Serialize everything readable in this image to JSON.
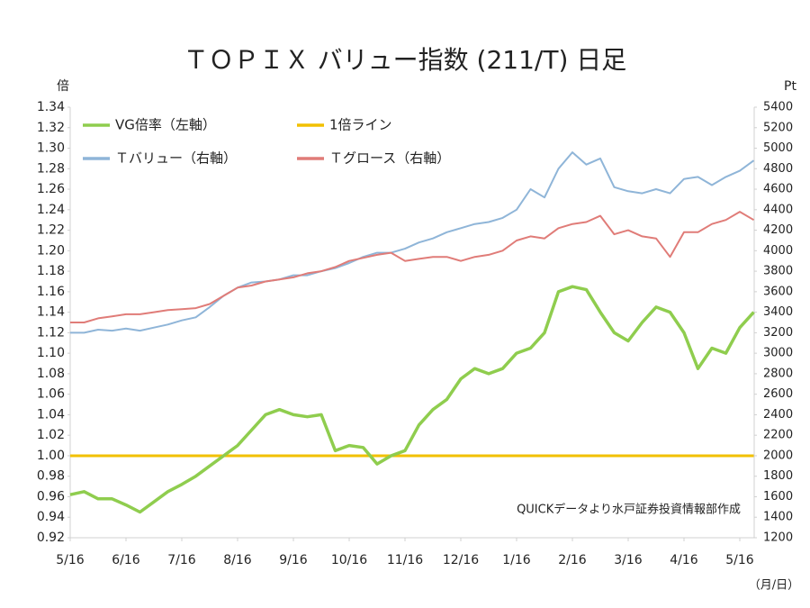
{
  "chart_data": {
    "type": "line",
    "title": "ＴＯＰＩＸ バリュー指数 (211/T) 日足",
    "y_label": "倍",
    "y2_label": "Pt",
    "x_label": "（月/日）",
    "annotation": "QUICKデータより水戸証券投資情報部作成",
    "categories": [
      "5/16",
      null,
      null,
      null,
      "6/16",
      null,
      null,
      null,
      "7/16",
      null,
      null,
      null,
      "8/16",
      null,
      null,
      null,
      "9/16",
      null,
      null,
      null,
      "10/16",
      null,
      null,
      null,
      "11/16",
      null,
      null,
      null,
      "12/16",
      null,
      null,
      null,
      "1/16",
      null,
      null,
      null,
      "2/16",
      null,
      null,
      null,
      "3/16",
      null,
      null,
      null,
      "4/16",
      null,
      null,
      null,
      "5/16",
      null
    ],
    "series": [
      {
        "name": "VG倍率（左軸）",
        "color": "#8fcd4e",
        "axis": "y",
        "values": [
          0.962,
          0.965,
          0.958,
          0.958,
          0.952,
          0.945,
          0.955,
          0.965,
          0.972,
          0.98,
          0.99,
          1.0,
          1.01,
          1.025,
          1.04,
          1.045,
          1.04,
          1.038,
          1.04,
          1.005,
          1.01,
          1.008,
          0.992,
          1.0,
          1.005,
          1.03,
          1.045,
          1.055,
          1.075,
          1.085,
          1.08,
          1.085,
          1.1,
          1.105,
          1.12,
          1.16,
          1.165,
          1.162,
          1.14,
          1.12,
          1.112,
          1.13,
          1.145,
          1.14,
          1.12,
          1.085,
          1.105,
          1.1,
          1.125,
          1.14
        ]
      },
      {
        "name": "1倍ライン",
        "color": "#f2c000",
        "axis": "y",
        "values": [
          1,
          1,
          1,
          1,
          1,
          1,
          1,
          1,
          1,
          1,
          1,
          1,
          1,
          1,
          1,
          1,
          1,
          1,
          1,
          1,
          1,
          1,
          1,
          1,
          1,
          1,
          1,
          1,
          1,
          1,
          1,
          1,
          1,
          1,
          1,
          1,
          1,
          1,
          1,
          1,
          1,
          1,
          1,
          1,
          1,
          1,
          1,
          1,
          1,
          1
        ]
      },
      {
        "name": "Ｔバリュー（右軸）",
        "color": "#8fb5d8",
        "axis": "y2",
        "values": [
          3200,
          3200,
          3230,
          3220,
          3240,
          3220,
          3250,
          3280,
          3320,
          3350,
          3450,
          3560,
          3640,
          3690,
          3700,
          3720,
          3760,
          3760,
          3800,
          3830,
          3880,
          3940,
          3980,
          3980,
          4020,
          4080,
          4120,
          4180,
          4220,
          4260,
          4280,
          4320,
          4400,
          4600,
          4520,
          4800,
          4960,
          4840,
          4900,
          4620,
          4580,
          4560,
          4600,
          4560,
          4700,
          4720,
          4640,
          4720,
          4780,
          4880
        ]
      },
      {
        "name": "Ｔグロース（右軸）",
        "color": "#e07c78",
        "axis": "y2",
        "values": [
          3300,
          3300,
          3340,
          3360,
          3380,
          3380,
          3400,
          3420,
          3430,
          3440,
          3480,
          3560,
          3640,
          3660,
          3700,
          3720,
          3740,
          3780,
          3800,
          3840,
          3900,
          3930,
          3960,
          3980,
          3900,
          3920,
          3940,
          3940,
          3900,
          3940,
          3960,
          4000,
          4100,
          4140,
          4120,
          4220,
          4260,
          4280,
          4340,
          4160,
          4200,
          4140,
          4120,
          3940,
          4180,
          4180,
          4260,
          4300,
          4380,
          4300
        ]
      }
    ],
    "ylim": [
      0.92,
      1.34
    ],
    "yticks": [
      0.92,
      0.94,
      0.96,
      0.98,
      {
        "value": 1,
        "label": "1.00"
      },
      1.02,
      1.04,
      1.06,
      1.08,
      {
        "value": 1.1,
        "label": "1.10"
      },
      1.12,
      1.14,
      1.16,
      1.18,
      {
        "value": 1.2,
        "label": "1.20"
      },
      1.22,
      1.24,
      1.26,
      1.28,
      {
        "value": 1.3,
        "label": "1.30"
      },
      1.32,
      1.34
    ],
    "y2lim": [
      1200,
      5400
    ],
    "y2ticks": [
      1200,
      1400,
      1600,
      1800,
      2000,
      2200,
      2400,
      2600,
      2800,
      3000,
      3200,
      3400,
      3600,
      3800,
      4000,
      4200,
      4400,
      4600,
      4800,
      5000,
      5200,
      5400
    ],
    "grid": false
  }
}
